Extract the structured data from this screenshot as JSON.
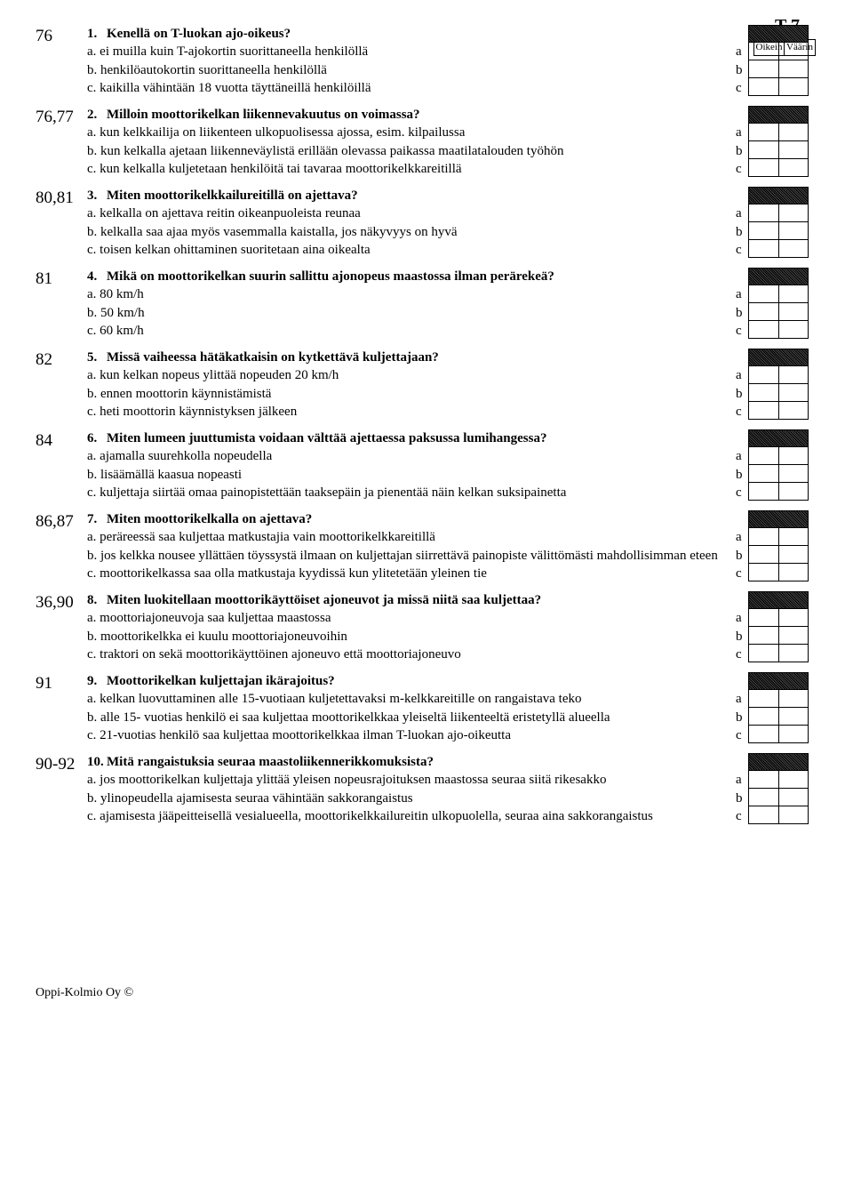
{
  "page_label": "T 7",
  "answer_headers": {
    "correct": "Oikein",
    "wrong": "Väärin"
  },
  "footer": "Oppi-Kolmio Oy ©",
  "questions": [
    {
      "ref": "76",
      "num": "1.",
      "title": "Kenellä on T-luokan ajo-oikeus?",
      "options": [
        {
          "p": "a.",
          "t": "ei muilla kuin T-ajokortin suorittaneella henkilöllä",
          "l": "a"
        },
        {
          "p": "b.",
          "t": "henkilöautokortin suorittaneella henkilöllä",
          "l": "b"
        },
        {
          "p": "c.",
          "t": "kaikilla vähintään 18 vuotta täyttäneillä henkilöillä",
          "l": "c"
        }
      ]
    },
    {
      "ref": "76,77",
      "num": "2.",
      "title": "Milloin moottorikelkan liikennevakuutus on voimassa?",
      "options": [
        {
          "p": "a.",
          "t": "kun kelkkailija on liikenteen ulkopuolisessa ajossa, esim. kilpailussa",
          "l": "a"
        },
        {
          "p": "b.",
          "t": "kun kelkalla ajetaan liikenneväylistä erillään olevassa paikassa maatilatalouden työhön",
          "l": "b"
        },
        {
          "p": "c.",
          "t": "kun kelkalla kuljetetaan henkilöitä tai tavaraa moottorikelkkareitillä",
          "l": "c"
        }
      ]
    },
    {
      "ref": "80,81",
      "num": "3.",
      "title": "Miten moottorikelkkailureitillä on ajettava?",
      "options": [
        {
          "p": "a.",
          "t": "kelkalla on ajettava reitin oikeanpuoleista reunaa",
          "l": "a"
        },
        {
          "p": "b.",
          "t": "kelkalla saa ajaa myös vasemmalla kaistalla, jos näkyvyys on hyvä",
          "l": "b"
        },
        {
          "p": "c.",
          "t": "toisen kelkan ohittaminen suoritetaan aina oikealta",
          "l": "c"
        }
      ]
    },
    {
      "ref": "81",
      "num": "4.",
      "title": "Mikä on moottorikelkan suurin sallittu ajonopeus maastossa ilman perärekeä?",
      "options": [
        {
          "p": "a.",
          "t": "80 km/h",
          "l": "a"
        },
        {
          "p": "b.",
          "t": "50 km/h",
          "l": "b"
        },
        {
          "p": "c.",
          "t": "60 km/h",
          "l": "c"
        }
      ]
    },
    {
      "ref": "82",
      "num": "5.",
      "title": "Missä vaiheessa hätäkatkaisin on kytkettävä kuljettajaan?",
      "options": [
        {
          "p": "a.",
          "t": "kun kelkan nopeus ylittää nopeuden 20 km/h",
          "l": "a"
        },
        {
          "p": "b.",
          "t": "ennen moottorin käynnistämistä",
          "l": "b"
        },
        {
          "p": "c.",
          "t": "heti moottorin käynnistyksen jälkeen",
          "l": "c"
        }
      ]
    },
    {
      "ref": "84",
      "num": "6.",
      "title": "Miten lumeen juuttumista voidaan välttää ajettaessa paksussa lumihangessa?",
      "options": [
        {
          "p": "a.",
          "t": "ajamalla suurehkolla nopeudella",
          "l": "a"
        },
        {
          "p": "b.",
          "t": "lisäämällä kaasua nopeasti",
          "l": "b"
        },
        {
          "p": "c.",
          "t": "kuljettaja siirtää omaa painopistettään taaksepäin ja pienentää näin kelkan suksipainetta",
          "l": "c"
        }
      ]
    },
    {
      "ref": "86,87",
      "num": "7.",
      "title": "Miten moottorikelkalla on ajettava?",
      "options": [
        {
          "p": "a.",
          "t": "peräreessä saa kuljettaa matkustajia vain moottorikelkkareitillä",
          "l": "a"
        },
        {
          "p": "b.",
          "t": "jos kelkka nousee yllättäen töyssystä ilmaan on kuljettajan siirrettävä painopiste välittömästi mahdollisimman eteen",
          "l": "b"
        },
        {
          "p": "c.",
          "t": "moottorikelkassa saa olla matkustaja kyydissä kun ylitetetään yleinen tie",
          "l": "c"
        }
      ]
    },
    {
      "ref": "36,90",
      "num": "8.",
      "title": "Miten luokitellaan moottorikäyttöiset ajoneuvot ja missä niitä saa kuljettaa?",
      "options": [
        {
          "p": "a.",
          "t": "moottoriajoneuvoja saa kuljettaa maastossa",
          "l": "a"
        },
        {
          "p": "b.",
          "t": "moottorikelkka ei kuulu moottoriajoneuvoihin",
          "l": "b"
        },
        {
          "p": "c.",
          "t": "traktori on sekä moottorikäyttöinen ajoneuvo että moottoriajoneuvo",
          "l": "c"
        }
      ]
    },
    {
      "ref": "91",
      "num": "9.",
      "title": "Moottorikelkan kuljettajan ikärajoitus?",
      "options": [
        {
          "p": "a.",
          "t": "kelkan luovuttaminen alle 15-vuotiaan kuljetettavaksi m-kelkkareitille on rangaistava teko",
          "l": "a"
        },
        {
          "p": "b.",
          "t": "alle 15- vuotias henkilö ei saa kuljettaa moottorikelkkaa yleiseltä liikenteeltä eristetyllä alueella",
          "l": "b"
        },
        {
          "p": "c.",
          "t": "21-vuotias henkilö saa kuljettaa moottorikelkkaa ilman T-luokan ajo-oikeutta",
          "l": "c"
        }
      ]
    },
    {
      "ref": "90-92",
      "num": "10.",
      "title": "Mitä rangaistuksia seuraa maastoliikennerikkomuksista?",
      "options": [
        {
          "p": "a.",
          "t": "jos moottorikelkan kuljettaja ylittää yleisen nopeusrajoituksen maastossa seuraa siitä rikesakko",
          "l": "a"
        },
        {
          "p": "b.",
          "t": "ylinopeudella ajamisesta seuraa vähintään sakkorangaistus",
          "l": "b"
        },
        {
          "p": "c.",
          "t": "ajamisesta jääpeitteisellä vesialueella, moottorikelkkailureitin ulkopuolella, seuraa aina sakkorangaistus",
          "l": "c"
        }
      ]
    }
  ]
}
